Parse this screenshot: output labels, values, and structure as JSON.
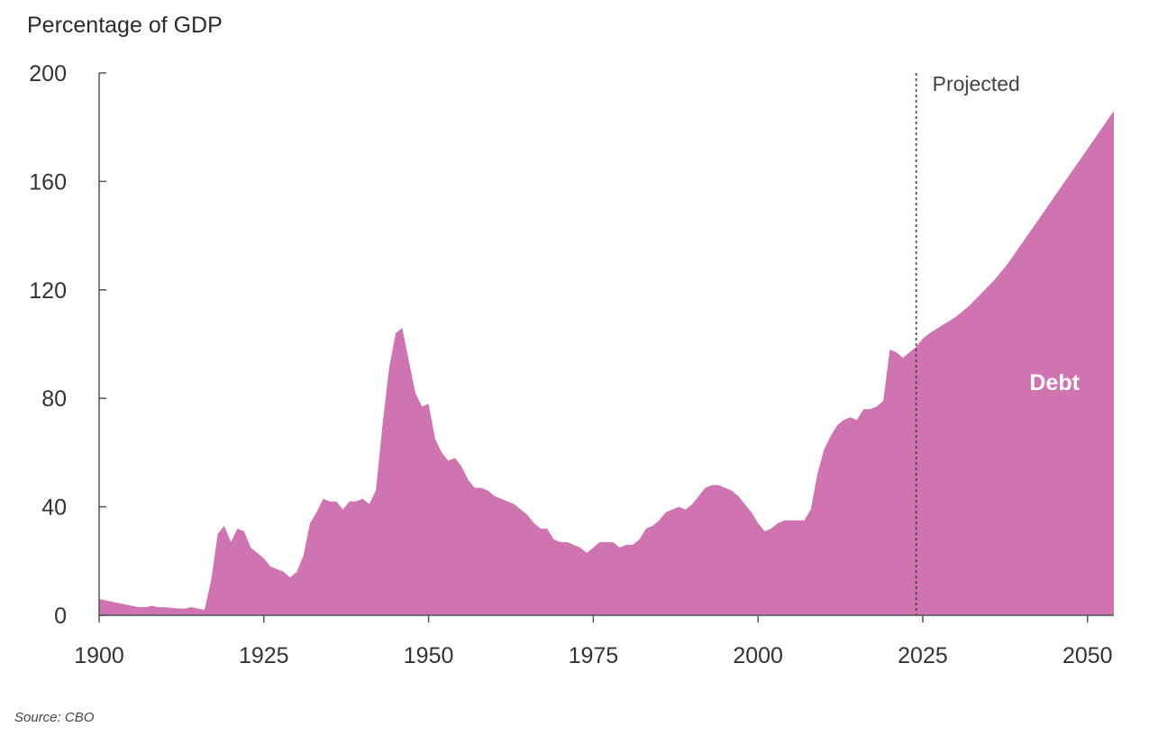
{
  "chart_data": {
    "type": "area",
    "ylabel": "Percentage of GDP",
    "source": "Source: CBO",
    "xlim": [
      1900,
      2054
    ],
    "ylim": [
      0,
      200
    ],
    "x_ticks": [
      1900,
      1925,
      1950,
      1975,
      2000,
      2025,
      2050
    ],
    "y_ticks": [
      0,
      40,
      80,
      120,
      160,
      200
    ],
    "projection_start": 2024,
    "projection_label": "Projected",
    "color": "#cf74b1",
    "series": [
      {
        "name": "Debt",
        "x": [
          1900,
          1902,
          1904,
          1906,
          1907,
          1908,
          1909,
          1910,
          1912,
          1913,
          1914,
          1915,
          1916,
          1917,
          1918,
          1919,
          1920,
          1921,
          1922,
          1923,
          1924,
          1925,
          1926,
          1927,
          1928,
          1929,
          1930,
          1931,
          1932,
          1933,
          1934,
          1935,
          1936,
          1937,
          1938,
          1939,
          1940,
          1941,
          1942,
          1943,
          1944,
          1945,
          1946,
          1947,
          1948,
          1949,
          1950,
          1951,
          1952,
          1953,
          1954,
          1955,
          1956,
          1957,
          1958,
          1959,
          1960,
          1961,
          1962,
          1963,
          1964,
          1965,
          1966,
          1967,
          1968,
          1969,
          1970,
          1971,
          1972,
          1973,
          1974,
          1975,
          1976,
          1977,
          1978,
          1979,
          1980,
          1981,
          1982,
          1983,
          1984,
          1985,
          1986,
          1987,
          1988,
          1989,
          1990,
          1991,
          1992,
          1993,
          1994,
          1995,
          1996,
          1997,
          1998,
          1999,
          2000,
          2001,
          2002,
          2003,
          2004,
          2005,
          2006,
          2007,
          2008,
          2009,
          2010,
          2011,
          2012,
          2013,
          2014,
          2015,
          2016,
          2017,
          2018,
          2019,
          2020,
          2021,
          2022,
          2023,
          2024,
          2025,
          2026,
          2028,
          2030,
          2032,
          2034,
          2036,
          2038,
          2040,
          2042,
          2044,
          2046,
          2048,
          2050,
          2052,
          2054
        ],
        "values": [
          6,
          5,
          4,
          3,
          3,
          3.5,
          3,
          3,
          2.5,
          2.5,
          3,
          2.5,
          2,
          13,
          30,
          33,
          27,
          32,
          31,
          25,
          23,
          21,
          18,
          17,
          16,
          14,
          16,
          22,
          34,
          38,
          43,
          42,
          42,
          39,
          42,
          42,
          43,
          41,
          46,
          70,
          91,
          104,
          106,
          94,
          82,
          77,
          78,
          65,
          60,
          57,
          58,
          55,
          50,
          47,
          47,
          46,
          44,
          43,
          42,
          41,
          39,
          37,
          34,
          32,
          32,
          28,
          27,
          27,
          26,
          25,
          23,
          25,
          27,
          27,
          27,
          25,
          26,
          26,
          28,
          32,
          33,
          35,
          38,
          39,
          40,
          39,
          41,
          44,
          47,
          48,
          48,
          47,
          46,
          44,
          41,
          38,
          34,
          31,
          32,
          34,
          35,
          35,
          35,
          35,
          39,
          52,
          61,
          66,
          70,
          72,
          73,
          72,
          76,
          76,
          77,
          79,
          98,
          97,
          95,
          97,
          99,
          102,
          104,
          107,
          110,
          114,
          119,
          124,
          130,
          137,
          144,
          151,
          158,
          165,
          172,
          179,
          186
        ]
      }
    ]
  }
}
